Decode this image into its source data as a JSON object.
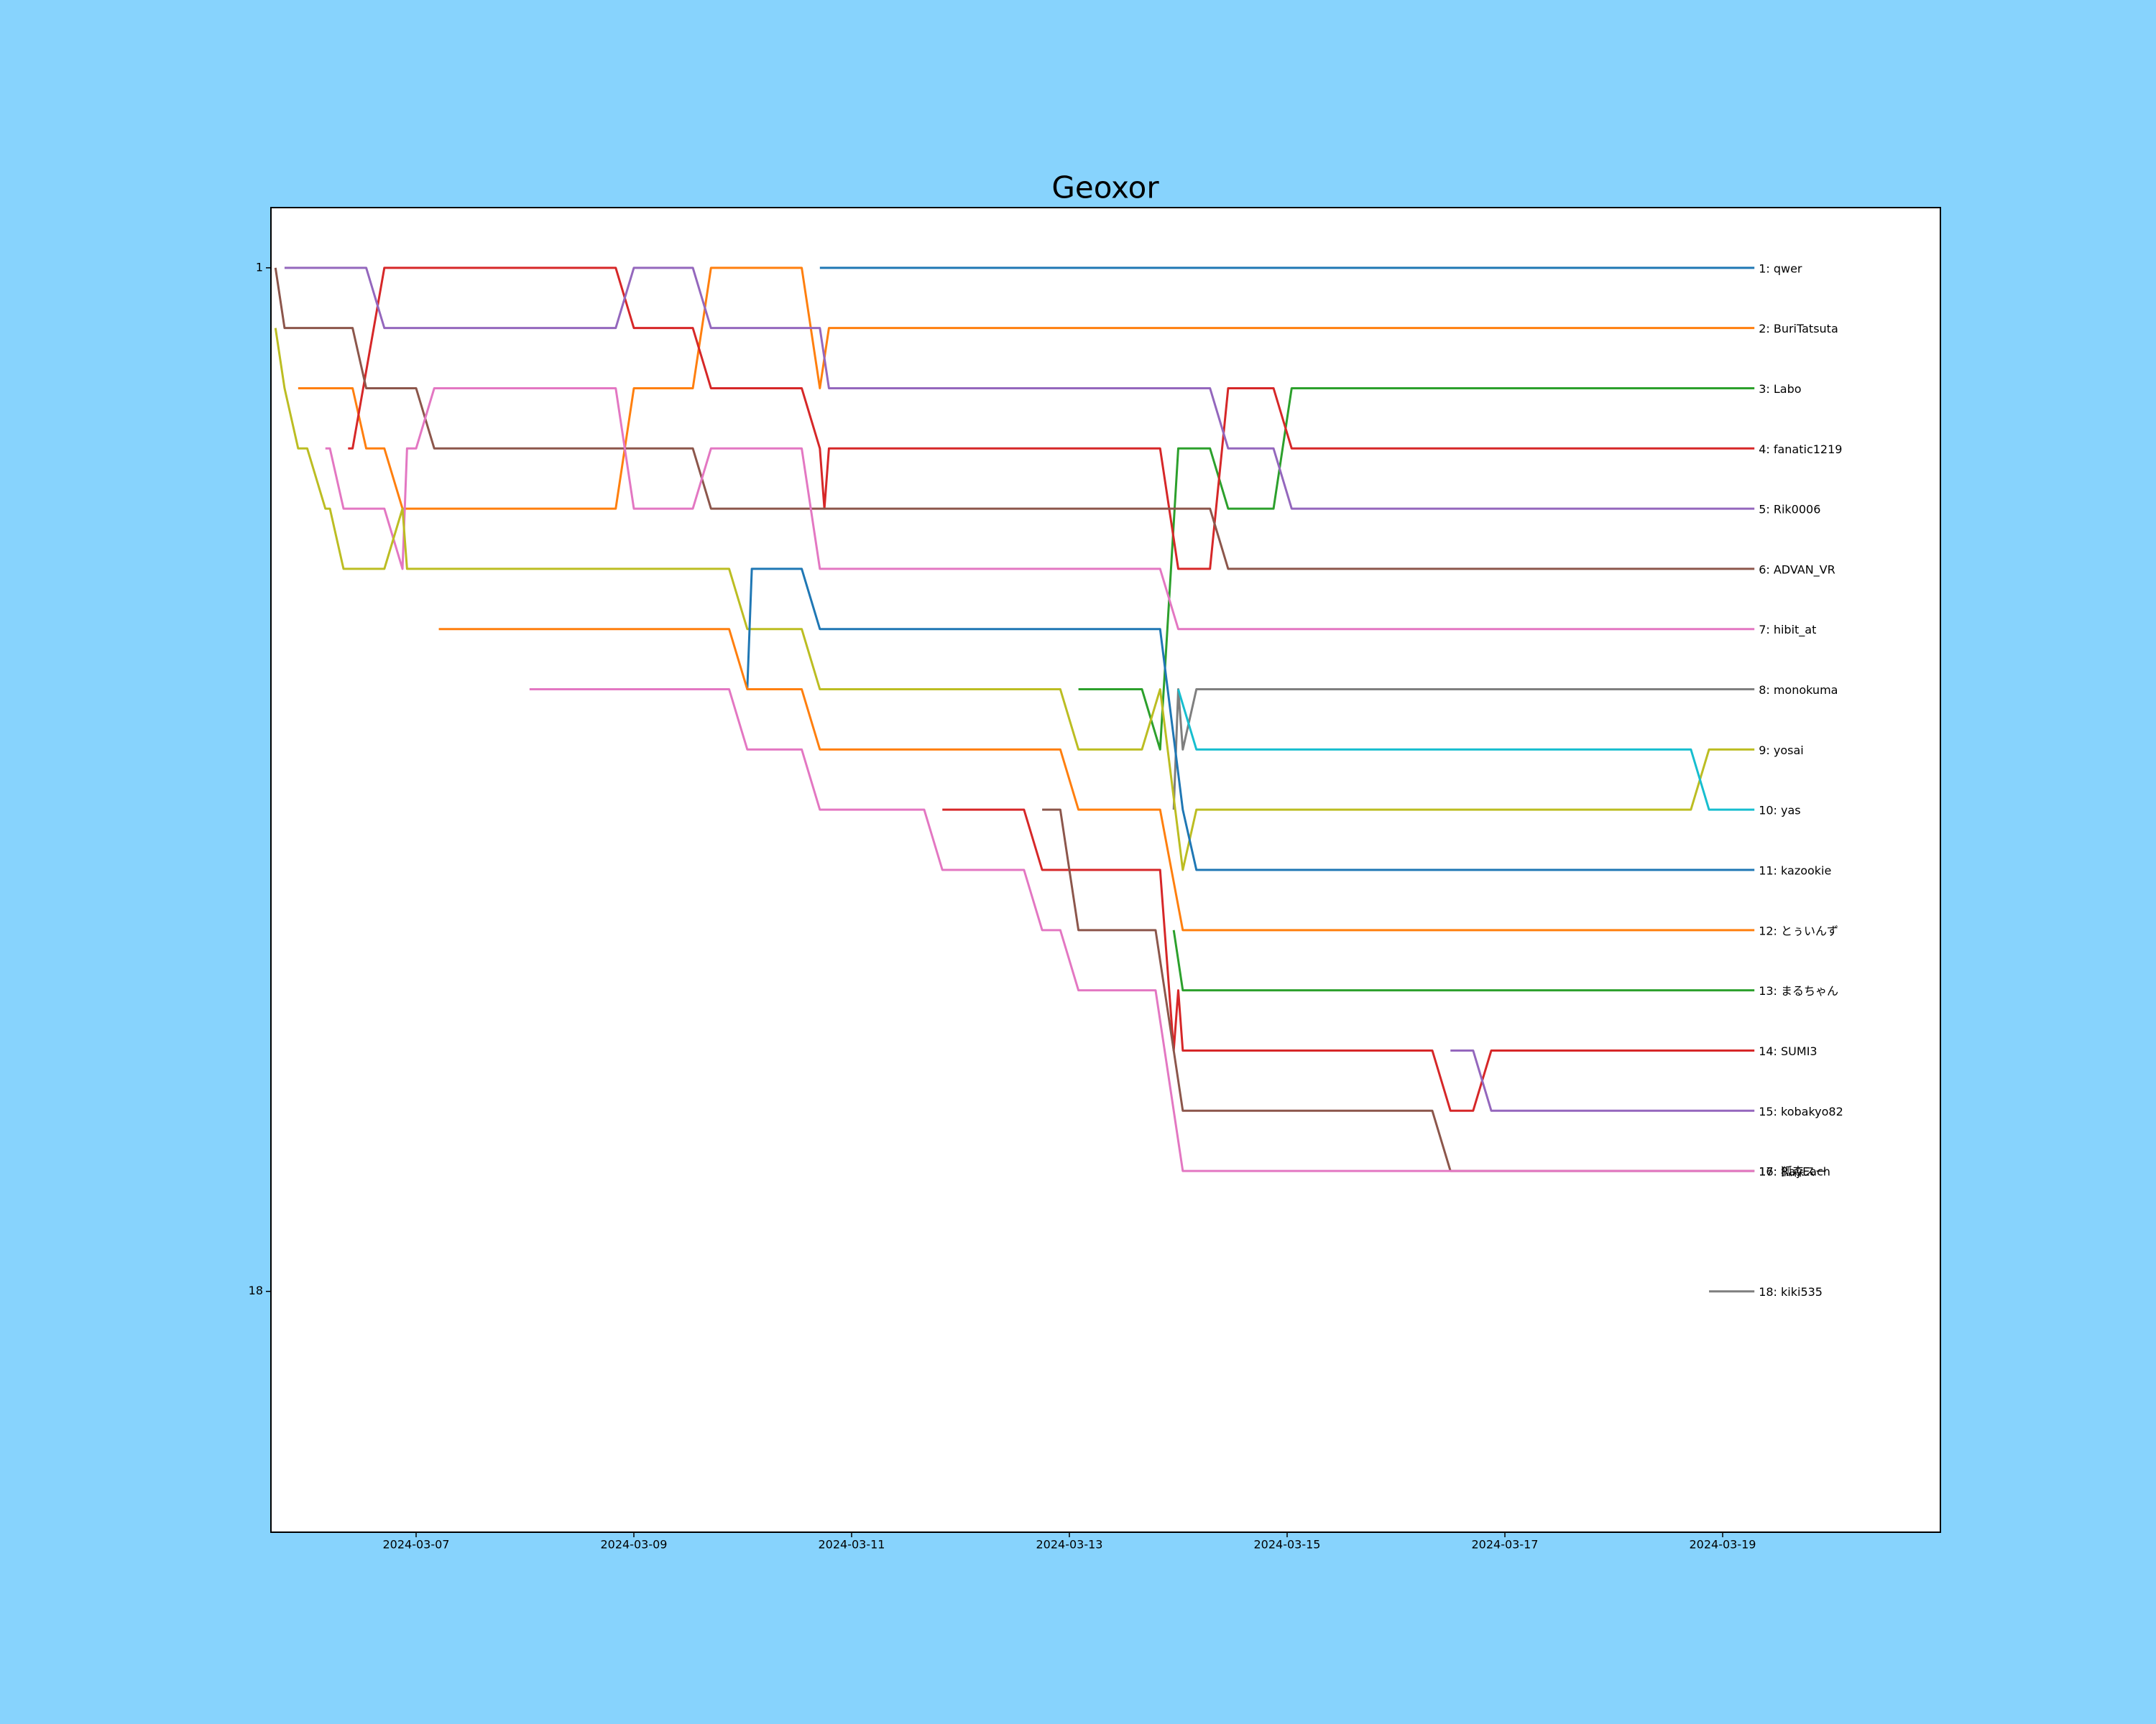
{
  "chart_data": {
    "type": "line",
    "title": "Geoxor",
    "xlim": [
      "2024-03-05 16:00",
      "2024-03-21 00:00"
    ],
    "xticks": [
      "2024-03-07",
      "2024-03-09",
      "2024-03-11",
      "2024-03-13",
      "2024-03-15",
      "2024-03-17",
      "2024-03-19"
    ],
    "ylim": [
      22,
      0
    ],
    "yticks": [
      1,
      18
    ],
    "series": [
      {
        "name": "1: qwer",
        "color": "#1f77b4",
        "x": [
          "2024-03-10 17:00",
          "2024-03-19 07:00"
        ],
        "values": [
          1,
          1
        ]
      },
      {
        "name": "2: BuriTatsuta",
        "color": "#ff7f0e",
        "x": [
          "2024-03-05 22:00",
          "2024-03-06 10:00",
          "2024-03-06 13:00",
          "2024-03-06 17:00",
          "2024-03-06 21:00",
          "2024-03-08 20:00",
          "2024-03-09 00:00",
          "2024-03-09 13:00",
          "2024-03-09 17:00",
          "2024-03-10 13:00",
          "2024-03-10 17:00",
          "2024-03-10 19:00",
          "2024-03-19 07:00"
        ],
        "values": [
          3,
          3,
          4,
          4,
          5,
          5,
          3,
          3,
          1,
          1,
          3,
          2,
          2
        ]
      },
      {
        "name": "3: Labo",
        "color": "#2ca02c",
        "x": [
          "2024-03-13 02:00",
          "2024-03-13 16:00",
          "2024-03-13 20:00",
          "2024-03-14 00:00",
          "2024-03-14 07:00",
          "2024-03-14 11:00",
          "2024-03-14 21:00",
          "2024-03-15 01:00",
          "2024-03-19 07:00"
        ],
        "values": [
          8,
          8,
          9,
          4,
          4,
          5,
          5,
          3,
          3
        ]
      },
      {
        "name": "4: fanatic1219",
        "color": "#d62728",
        "x": [
          "2024-03-06 09:00",
          "2024-03-06 10:00",
          "2024-03-06 17:00",
          "2024-03-08 20:00",
          "2024-03-09 00:00",
          "2024-03-09 13:00",
          "2024-03-09 17:00",
          "2024-03-10 13:00",
          "2024-03-10 17:00",
          "2024-03-10 18:00",
          "2024-03-10 19:00",
          "2024-03-13 20:00",
          "2024-03-14 00:00",
          "2024-03-14 07:00",
          "2024-03-14 11:00",
          "2024-03-14 21:00",
          "2024-03-15 01:00",
          "2024-03-19 07:00"
        ],
        "values": [
          4,
          4,
          1,
          1,
          2,
          2,
          3,
          3,
          4,
          5,
          4,
          4,
          6,
          6,
          3,
          3,
          4,
          4
        ]
      },
      {
        "name": "5: Rik0006",
        "color": "#9467bd",
        "x": [
          "2024-03-05 19:00",
          "2024-03-06 13:00",
          "2024-03-06 17:00",
          "2024-03-08 20:00",
          "2024-03-09 00:00",
          "2024-03-09 13:00",
          "2024-03-09 17:00",
          "2024-03-10 17:00",
          "2024-03-10 19:00",
          "2024-03-14 07:00",
          "2024-03-14 11:00",
          "2024-03-14 21:00",
          "2024-03-15 01:00",
          "2024-03-19 07:00"
        ],
        "values": [
          1,
          1,
          2,
          2,
          1,
          1,
          2,
          2,
          3,
          3,
          4,
          4,
          5,
          5
        ]
      },
      {
        "name": "6: ADVAN_VR",
        "color": "#8c564b",
        "x": [
          "2024-03-05 17:00",
          "2024-03-05 19:00",
          "2024-03-06 10:00",
          "2024-03-06 13:00",
          "2024-03-07 00:00",
          "2024-03-07 04:00",
          "2024-03-09 13:00",
          "2024-03-09 17:00",
          "2024-03-14 07:00",
          "2024-03-14 11:00",
          "2024-03-19 07:00"
        ],
        "values": [
          1,
          2,
          2,
          3,
          3,
          4,
          4,
          5,
          5,
          6,
          6
        ]
      },
      {
        "name": "7: hibit_at",
        "color": "#e377c2",
        "x": [
          "2024-03-06 04:00",
          "2024-03-06 05:00",
          "2024-03-06 08:00",
          "2024-03-06 17:00",
          "2024-03-06 21:00",
          "2024-03-06 22:00",
          "2024-03-07 00:00",
          "2024-03-07 04:00",
          "2024-03-08 20:00",
          "2024-03-09 00:00",
          "2024-03-09 13:00",
          "2024-03-09 17:00",
          "2024-03-10 13:00",
          "2024-03-10 17:00",
          "2024-03-13 20:00",
          "2024-03-14 00:00",
          "2024-03-19 07:00"
        ],
        "values": [
          4,
          4,
          5,
          5,
          6,
          4,
          4,
          3,
          3,
          5,
          5,
          4,
          4,
          6,
          6,
          7,
          7
        ]
      },
      {
        "name": "8: monokuma",
        "color": "#7f7f7f",
        "x": [
          "2024-03-13 23:00",
          "2024-03-14 00:00",
          "2024-03-14 01:00",
          "2024-03-14 04:00",
          "2024-03-19 07:00"
        ],
        "values": [
          10,
          8,
          9,
          8,
          8
        ]
      },
      {
        "name": "9: yosai",
        "color": "#bcbd22",
        "x": [
          "2024-03-05 17:00",
          "2024-03-05 19:00",
          "2024-03-05 22:00",
          "2024-03-06 00:00",
          "2024-03-06 04:00",
          "2024-03-06 05:00",
          "2024-03-06 08:00",
          "2024-03-06 17:00",
          "2024-03-06 21:00",
          "2024-03-06 22:00",
          "2024-03-09 21:00",
          "2024-03-10 01:00",
          "2024-03-10 13:00",
          "2024-03-10 17:00",
          "2024-03-12 22:00",
          "2024-03-13 02:00",
          "2024-03-13 16:00",
          "2024-03-13 20:00",
          "2024-03-14 01:00",
          "2024-03-14 04:00",
          "2024-03-18 17:00",
          "2024-03-18 21:00",
          "2024-03-19 07:00"
        ],
        "values": [
          2,
          3,
          4,
          4,
          5,
          5,
          6,
          6,
          5,
          6,
          6,
          7,
          7,
          8,
          8,
          9,
          9,
          8,
          11,
          10,
          10,
          9,
          9
        ]
      },
      {
        "name": "10: yas",
        "color": "#17becf",
        "x": [
          "2024-03-14 00:00",
          "2024-03-14 04:00",
          "2024-03-18 17:00",
          "2024-03-18 21:00",
          "2024-03-19 07:00"
        ],
        "values": [
          8,
          9,
          9,
          10,
          10
        ]
      },
      {
        "name": "11: kazookie",
        "color": "#1f77b4",
        "x": [
          "2024-03-10 01:00",
          "2024-03-10 02:00",
          "2024-03-10 13:00",
          "2024-03-10 17:00",
          "2024-03-13 20:00",
          "2024-03-14 01:00",
          "2024-03-14 04:00",
          "2024-03-19 07:00"
        ],
        "values": [
          8,
          6,
          6,
          7,
          7,
          10,
          11,
          11
        ]
      },
      {
        "name": "12: とぅいんず",
        "color": "#ff7f0e",
        "x": [
          "2024-03-07 05:00",
          "2024-03-09 21:00",
          "2024-03-10 01:00",
          "2024-03-10 13:00",
          "2024-03-10 17:00",
          "2024-03-12 22:00",
          "2024-03-13 02:00",
          "2024-03-13 20:00",
          "2024-03-14 01:00",
          "2024-03-19 07:00"
        ],
        "values": [
          7,
          7,
          8,
          8,
          9,
          9,
          10,
          10,
          12,
          12
        ]
      },
      {
        "name": "13: まるちゃん",
        "color": "#2ca02c",
        "x": [
          "2024-03-13 23:00",
          "2024-03-14 01:00",
          "2024-03-19 07:00"
        ],
        "values": [
          12,
          13,
          13
        ]
      },
      {
        "name": "14: SUMI3",
        "color": "#d62728",
        "x": [
          "2024-03-11 20:00",
          "2024-03-12 14:00",
          "2024-03-12 18:00",
          "2024-03-13 20:00",
          "2024-03-13 23:00",
          "2024-03-14 00:00",
          "2024-03-14 01:00",
          "2024-03-16 08:00",
          "2024-03-16 12:00",
          "2024-03-16 17:00",
          "2024-03-16 21:00",
          "2024-03-19 07:00"
        ],
        "values": [
          10,
          10,
          11,
          11,
          14,
          13,
          14,
          14,
          15,
          15,
          14,
          14
        ]
      },
      {
        "name": "15: kobakyo82",
        "color": "#9467bd",
        "x": [
          "2024-03-16 12:00",
          "2024-03-16 17:00",
          "2024-03-16 21:00",
          "2024-03-19 07:00"
        ],
        "values": [
          14,
          14,
          15,
          15
        ]
      },
      {
        "name": "16: 狐森スー",
        "color": "#8c564b",
        "x": [
          "2024-03-12 18:00",
          "2024-03-12 22:00",
          "2024-03-13 02:00",
          "2024-03-13 19:00",
          "2024-03-13 23:00",
          "2024-03-14 01:00",
          "2024-03-16 08:00",
          "2024-03-16 12:00",
          "2024-03-19 07:00"
        ],
        "values": [
          10,
          10,
          12,
          12,
          14,
          15,
          15,
          16,
          16
        ]
      },
      {
        "name": "17: RayEach",
        "color": "#e377c2",
        "x": [
          "2024-03-08 01:00",
          "2024-03-09 21:00",
          "2024-03-10 01:00",
          "2024-03-10 13:00",
          "2024-03-10 17:00",
          "2024-03-11 16:00",
          "2024-03-11 20:00",
          "2024-03-12 14:00",
          "2024-03-12 18:00",
          "2024-03-12 22:00",
          "2024-03-13 02:00",
          "2024-03-13 19:00",
          "2024-03-14 01:00",
          "2024-03-19 07:00"
        ],
        "values": [
          8,
          8,
          9,
          9,
          10,
          10,
          11,
          11,
          12,
          12,
          13,
          13,
          16,
          16
        ]
      },
      {
        "name": "18: kiki535",
        "color": "#7f7f7f",
        "x": [
          "2024-03-18 21:00",
          "2024-03-19 07:00"
        ],
        "values": [
          18,
          18
        ]
      }
    ]
  }
}
